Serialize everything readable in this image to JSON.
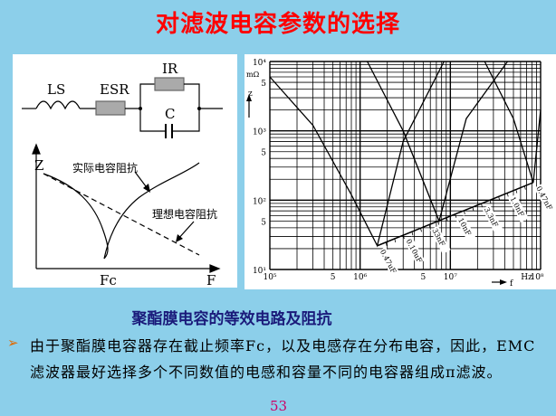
{
  "title": "对滤波电容参数的选择",
  "circuit": {
    "ls": "LS",
    "esr": "ESR",
    "ir": "IR",
    "c": "C"
  },
  "zplot": {
    "y_label": "Z",
    "x_label": "F",
    "fc_label": "Fc",
    "actual": "实际电容阻抗",
    "ideal": "理想电容阻抗"
  },
  "chart_data": {
    "type": "line",
    "x_scale": "log",
    "y_scale": "log",
    "xlim": [
      100000,
      100000000
    ],
    "ylim": [
      10,
      10000
    ],
    "xlabel": "f",
    "ylabel": "z",
    "x_unit": "Hz",
    "y_unit": "mΩ",
    "grid": true,
    "x_ticks": [
      "10⁵",
      "5",
      "10⁶",
      "5",
      "10⁷",
      "10⁸"
    ],
    "y_ticks": [
      "10⁴",
      "5",
      "10³",
      "5",
      "10²",
      "5",
      "10¹"
    ],
    "series": [
      {
        "points": [
          [
            100000,
            6000
          ],
          [
            300000,
            1200
          ],
          [
            800000,
            120
          ],
          [
            1550000,
            22
          ],
          [
            3000000,
            700
          ],
          [
            8500000,
            10000
          ]
        ]
      },
      {
        "points": [
          [
            1200000,
            10000
          ],
          [
            3000000,
            1000
          ],
          [
            7500000,
            50
          ],
          [
            15000000,
            1500
          ],
          [
            43000000,
            10000
          ]
        ]
      },
      {
        "points": [
          [
            24000000,
            10000
          ],
          [
            50000000,
            1500
          ],
          [
            83000000,
            180
          ],
          [
            100000000,
            2000
          ]
        ]
      }
    ],
    "envelope": [
      [
        1550000,
        22
      ],
      [
        83000000,
        180
      ]
    ],
    "envelope_labels": [
      "0.47uF",
      "0.10uF",
      "33nF",
      "10nF",
      "3.3nF",
      "1.0nF",
      "0.47nF"
    ]
  },
  "caption": "聚酯膜电容的等效电路及阻抗",
  "bullet_text": "由于聚酯膜电容器存在截止频率Fc，以及电感存在分布电容，因此，EMC滤波器最好选择多个不同数值的电感和容量不同的电容器组成π滤波。",
  "page_number": "53",
  "colors": {
    "background": "#8ccfea",
    "title": "#ff0000",
    "caption": "#1a1a7a",
    "page_number": "#cc0066",
    "bullet": "#e06a00"
  }
}
